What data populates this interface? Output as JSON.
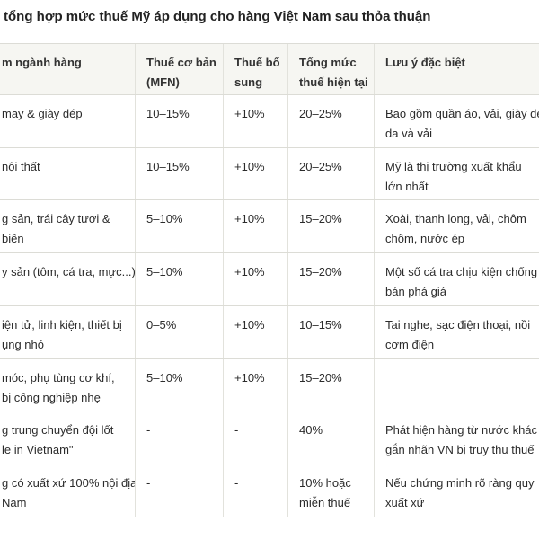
{
  "title": "tổng hợp mức thuế Mỹ áp dụng cho hàng Việt Nam sau thỏa thuận",
  "table": {
    "header": [
      [
        "m ngành hàng"
      ],
      [
        "Thuế cơ bản",
        "(MFN)"
      ],
      [
        "Thuế bổ",
        "sung"
      ],
      [
        "Tổng mức",
        "thuế hiện tại"
      ],
      [
        "Lưu ý đặc biệt"
      ]
    ],
    "rows": [
      [
        [
          "may & giày dép"
        ],
        [
          "10–15%"
        ],
        [
          "+10%"
        ],
        [
          "20–25%"
        ],
        [
          "Bao gồm quần áo, vải, giày dé",
          "da và vải"
        ]
      ],
      [
        [
          "nội thất"
        ],
        [
          "10–15%"
        ],
        [
          "+10%"
        ],
        [
          "20–25%"
        ],
        [
          "Mỹ là thị trường xuất khẩu",
          "lớn nhất"
        ]
      ],
      [
        [
          "g sản, trái cây tươi &",
          "biến"
        ],
        [
          "5–10%"
        ],
        [
          "+10%"
        ],
        [
          "15–20%"
        ],
        [
          "Xoài, thanh long, vải, chôm",
          "chôm, nước ép"
        ]
      ],
      [
        [
          "y sản (tôm, cá tra, mực...)"
        ],
        [
          "5–10%"
        ],
        [
          "+10%"
        ],
        [
          "15–20%"
        ],
        [
          "Một số cá tra chịu kiện chống",
          "bán phá giá"
        ]
      ],
      [
        [
          "iện tử, linh kiện, thiết bị",
          "ụng nhỏ"
        ],
        [
          "0–5%"
        ],
        [
          "+10%"
        ],
        [
          "10–15%"
        ],
        [
          "Tai nghe, sạc điện thoại, nồi",
          "cơm điện"
        ]
      ],
      [
        [
          "móc, phụ tùng cơ khí,",
          "bị công nghiệp nhẹ"
        ],
        [
          "5–10%"
        ],
        [
          "+10%"
        ],
        [
          "15–20%"
        ],
        []
      ],
      [
        [
          "g trung chuyển đội lốt",
          "le in Vietnam\""
        ],
        [
          "-"
        ],
        [
          "-"
        ],
        [
          "40%"
        ],
        [
          "Phát hiện hàng từ nước khác",
          "gắn nhãn VN bị truy thu thuế"
        ]
      ],
      [
        [
          "g có xuất xứ 100% nội địa",
          "Nam"
        ],
        [
          "-"
        ],
        [
          "-"
        ],
        [
          "10% hoặc",
          "miễn thuế"
        ],
        [
          "Nếu chứng minh rõ ràng quy",
          "xuất xứ"
        ]
      ]
    ]
  }
}
